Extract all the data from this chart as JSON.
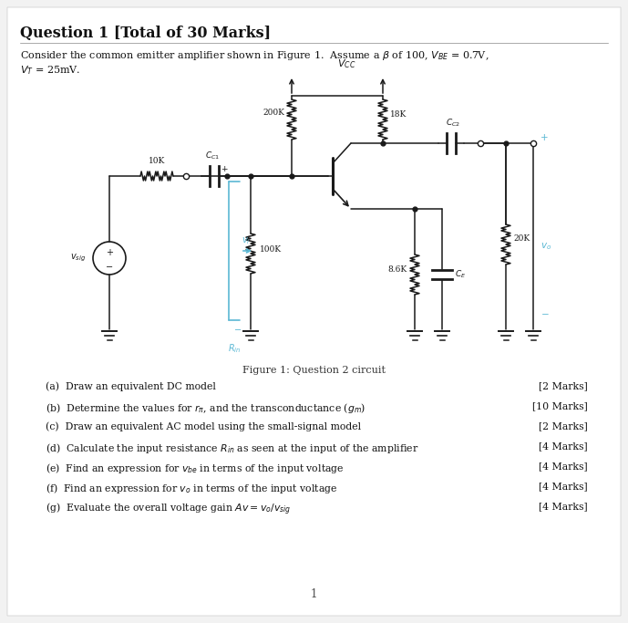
{
  "title": "Question 1 [Total of 30 Marks]",
  "bg_color": "#f2f2f2",
  "white": "#ffffff",
  "cc": "#1a1a1a",
  "bc": "#5bb8d4",
  "fig_caption": "Figure 1: Question 2 circuit",
  "page_number": "1",
  "q_items": [
    [
      "(a)  Draw an equivalent DC model",
      "[2 Marks]"
    ],
    [
      "(b)  Determine the values for $r_{\\pi}$, and the transconductance ($g_m$)",
      "[10 Marks]"
    ],
    [
      "(c)  Draw an equivalent AC model using the small-signal model",
      "[2 Marks]"
    ],
    [
      "(d)  Calculate the input resistance $R_{in}$ as seen at the input of the amplifier",
      "[4 Marks]"
    ],
    [
      "(e)  Find an expression for $v_{be}$ in terms of the input voltage",
      "[4 Marks]"
    ],
    [
      "(f)  Find an expression for $v_o$ in terms of the input voltage",
      "[4 Marks]"
    ],
    [
      "(g)  Evaluate the overall voltage gain $Av = v_o/v_{sig}$",
      "[4 Marks]"
    ]
  ]
}
